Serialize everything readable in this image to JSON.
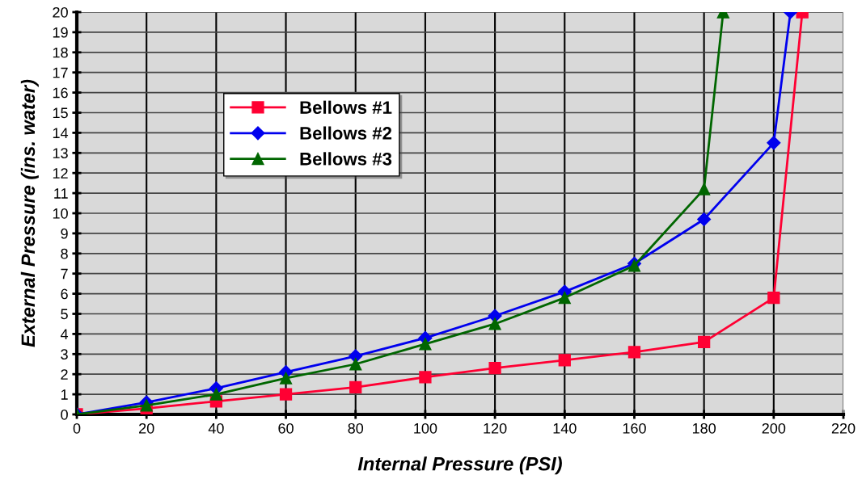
{
  "chart_data": {
    "type": "line",
    "xlabel": "Internal Pressure (PSI)",
    "ylabel": "External Pressure (ins. water)",
    "xlim": [
      0,
      220
    ],
    "xticks": [
      0,
      20,
      40,
      60,
      80,
      100,
      120,
      140,
      160,
      180,
      200,
      220
    ],
    "ylim": [
      0,
      20
    ],
    "yticks": [
      0,
      1,
      2,
      3,
      4,
      5,
      6,
      7,
      8,
      9,
      10,
      11,
      12,
      13,
      14,
      15,
      16,
      17,
      18,
      19,
      20
    ],
    "grid": true,
    "legend": "top left",
    "series": [
      {
        "name": "Bellows #1",
        "color": "#ff0033",
        "marker": "square",
        "x": [
          0,
          20,
          40,
          60,
          80,
          100,
          120,
          140,
          160,
          180,
          200,
          208.2
        ],
        "values": [
          0,
          0.3,
          0.65,
          1.0,
          1.35,
          1.85,
          2.3,
          2.7,
          3.1,
          3.6,
          5.8,
          20
        ]
      },
      {
        "name": "Bellows #2",
        "color": "#0000ee",
        "marker": "diamond",
        "x": [
          0,
          20,
          40,
          60,
          80,
          100,
          120,
          140,
          160,
          180,
          200,
          204.8
        ],
        "values": [
          0,
          0.6,
          1.3,
          2.1,
          2.9,
          3.8,
          4.9,
          6.1,
          7.5,
          9.7,
          13.5,
          20
        ]
      },
      {
        "name": "Bellows #3",
        "color": "#006600",
        "marker": "triangle",
        "x": [
          0,
          20,
          40,
          60,
          80,
          100,
          120,
          140,
          160,
          180,
          185.5
        ],
        "values": [
          0,
          0.45,
          1.0,
          1.8,
          2.5,
          3.5,
          4.5,
          5.8,
          7.4,
          11.2,
          20
        ]
      }
    ]
  }
}
